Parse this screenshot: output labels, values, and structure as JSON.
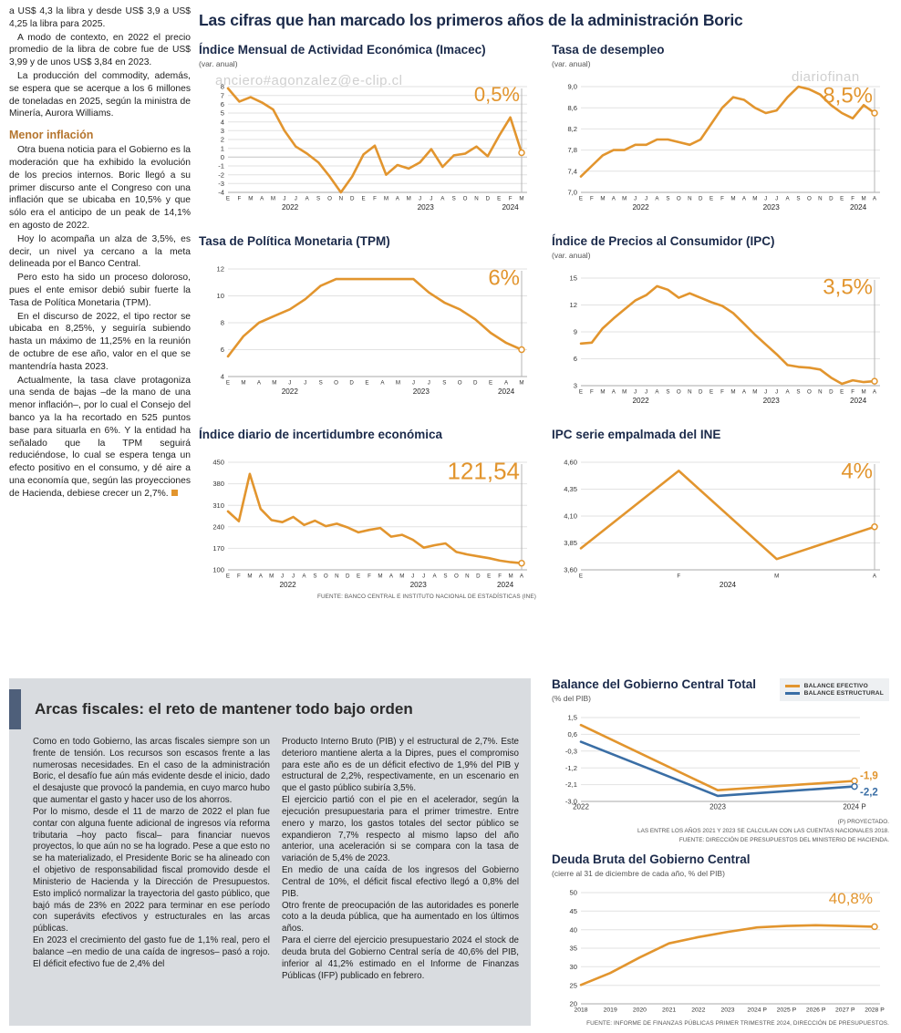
{
  "headline": "Las cifras que han marcado los primeros años de la administración Boric",
  "watermarks": {
    "w1": "anciero#agonzalez@e-clip.cl",
    "w2": "diariofinan",
    "w3": "ero#agonzalez@e-clip.cl"
  },
  "left_article": {
    "p1": "a US$ 4,3 la libra y desde US$ 3,9 a US$ 4,25 la libra para 2025.",
    "p2": "A modo de contexto, en 2022 el precio promedio de la libra de cobre fue de US$ 3,99 y de unos US$ 3,84 en 2023.",
    "p3": "La producción del commodity, además, se espera que se acerque a los 6 millones de toneladas en 2025, según la ministra de Minería, Aurora Williams.",
    "subhead": "Menor inflación",
    "p4": "Otra buena noticia para el Gobierno es la moderación que ha exhibido la evolución de los precios internos. Boric llegó a su primer discurso ante el Congreso con una inflación que se ubicaba en 10,5% y que sólo era el anticipo de un peak de 14,1% en agosto de 2022.",
    "p5": "Hoy lo acompaña un alza de 3,5%, es decir, un nivel ya cercano a la meta delineada por el Banco Central.",
    "p6": "Pero esto ha sido un proceso doloroso, pues el ente emisor debió subir fuerte la Tasa de Política Monetaria (TPM).",
    "p7": "En el discurso de 2022, el tipo rector se ubicaba en 8,25%, y seguiría subiendo hasta un máximo de 11,25% en la reunión de octubre de ese año, valor en el que se mantendría hasta 2023.",
    "p8": "Actualmente, la tasa clave protagoniza una senda de bajas –de la mano de una menor inflación–, por lo cual el Consejo del banco ya la ha recortado en 525 puntos base para situarla en 6%. Y la entidad ha señalado que la TPM seguirá reduciéndose, lo cual se espera tenga un efecto positivo en el consumo, y dé aire a una economía que, según las proyecciones de Hacienda, debiese crecer un 2,7%."
  },
  "fiscal": {
    "title": "Arcas fiscales: el reto de mantener todo bajo orden",
    "col1": [
      "Como en todo Gobierno, las arcas fiscales siempre son un frente de tensión. Los recursos son escasos frente a las numerosas necesidades. En el caso de la administración Boric, el desafío fue aún más evidente desde el inicio, dado el desajuste que provocó la pandemia, en cuyo marco hubo que aumentar el gasto y hacer uso de los ahorros.",
      "Por lo mismo, desde el 11 de marzo de 2022 el plan fue contar con alguna fuente adicional de ingresos vía reforma tributaria –hoy pacto fiscal– para financiar nuevos proyectos, lo que aún no se ha logrado. Pese a que esto no se ha materializado, el Presidente Boric se ha alineado con el objetivo de responsabilidad fiscal promovido desde el Ministerio de Hacienda y la Dirección de Presupuestos. Esto implicó normalizar la trayectoria del gasto público, que bajó más de 23% en 2022 para terminar en ese período con superávits efectivos y estructurales en las arcas públicas.",
      "En 2023 el crecimiento del gasto fue de 1,1% real, pero el balance –en medio de una caída de ingresos– pasó a rojo. El déficit efectivo fue de 2,4% del"
    ],
    "col2": [
      "Producto Interno Bruto (PIB) y el estructural de 2,7%. Este deterioro mantiene alerta a la Dipres, pues el compromiso para este año es de un déficit efectivo de 1,9% del PIB y estructural de 2,2%, respectivamente, en un escenario en que el gasto público subiría 3,5%.",
      "El ejercicio partió con el pie en el acelerador, según la ejecución presupuestaria para el primer trimestre. Entre enero y marzo, los gastos totales del sector público se expandieron 7,7% respecto al mismo lapso del año anterior, una aceleración si se compara con la tasa de variación de 5,4% de 2023.",
      "En medio de una caída de los ingresos del Gobierno Central de 10%, el déficit fiscal efectivo llegó a 0,8% del PIB.",
      "Otro frente de preocupación de las autoridades es ponerle coto a la deuda pública, que ha aumentado en los últimos años.",
      "Para el cierre del ejercicio presupuestario 2024 el stock de deuda bruta del Gobierno Central sería de 40,6% del PIB, inferior al 41,2% estimado en el Informe de Finanzas Públicas (IFP) publicado en febrero."
    ]
  },
  "colors": {
    "accent_orange": "#E2952E",
    "line_blue": "#3A6EA5",
    "navy": "#1B2A4A",
    "subhead_brown": "#B5752E",
    "box_gray": "#D9DCE0",
    "bar_slate": "#4E5F7A"
  },
  "chart_data": [
    {
      "id": "imacec",
      "type": "line",
      "title": "Índice Mensual de Actividad Económica (Imacec)",
      "subtitle": "(var. anual)",
      "big_label": "0,5%",
      "big_label_size": 22,
      "end_line": true,
      "ylim": [
        -4,
        8
      ],
      "y_ticks": [
        {
          "v": 8,
          "t": "8"
        },
        {
          "v": 7,
          "t": "7"
        },
        {
          "v": 6,
          "t": "6"
        },
        {
          "v": 5,
          "t": "5"
        },
        {
          "v": 4,
          "t": "4"
        },
        {
          "v": 3,
          "t": "3"
        },
        {
          "v": 2,
          "t": "2"
        },
        {
          "v": 1,
          "t": "1"
        },
        {
          "v": 0,
          "t": "0"
        },
        {
          "v": -1,
          "t": "-1"
        },
        {
          "v": -2,
          "t": "-2"
        },
        {
          "v": -3,
          "t": "-3"
        },
        {
          "v": -4,
          "t": "-4"
        }
      ],
      "x_labels": [
        "E",
        "F",
        "M",
        "A",
        "M",
        "J",
        "J",
        "A",
        "S",
        "O",
        "N",
        "D",
        "E",
        "F",
        "M",
        "A",
        "M",
        "J",
        "J",
        "A",
        "S",
        "O",
        "N",
        "D",
        "E",
        "F",
        "M"
      ],
      "year_groups": [
        {
          "label": "2022",
          "from": 0,
          "to": 11
        },
        {
          "label": "2023",
          "from": 12,
          "to": 23
        },
        {
          "label": "2024",
          "from": 24,
          "to": 26
        }
      ],
      "series": [
        {
          "name": "Imacec",
          "color": "#E2952E",
          "values": [
            7.8,
            6.3,
            6.8,
            6.2,
            5.4,
            3.0,
            1.2,
            0.4,
            -0.6,
            -2.2,
            -4.0,
            -2.2,
            0.3,
            1.3,
            -2.0,
            -0.9,
            -1.3,
            -0.6,
            0.9,
            -1.1,
            0.2,
            0.4,
            1.2,
            0.1,
            2.4,
            4.5,
            0.5
          ]
        }
      ]
    },
    {
      "id": "desempleo",
      "type": "line",
      "title": "Tasa de desempleo",
      "subtitle": "(var. anual)",
      "big_label": "8,5%",
      "big_label_size": 24,
      "end_line": true,
      "ylim": [
        7.0,
        9.0
      ],
      "y_ticks": [
        {
          "v": 9.0,
          "t": "9,0"
        },
        {
          "v": 8.6,
          "t": "8,6"
        },
        {
          "v": 8.2,
          "t": "8,2"
        },
        {
          "v": 7.8,
          "t": "7,8"
        },
        {
          "v": 7.4,
          "t": "7,4"
        },
        {
          "v": 7.0,
          "t": "7,0"
        }
      ],
      "x_labels": [
        "E",
        "F",
        "M",
        "A",
        "M",
        "J",
        "J",
        "A",
        "S",
        "O",
        "N",
        "D",
        "E",
        "F",
        "M",
        "A",
        "M",
        "J",
        "J",
        "A",
        "S",
        "O",
        "N",
        "D",
        "E",
        "F",
        "M",
        "A"
      ],
      "year_groups": [
        {
          "label": "2022",
          "from": 0,
          "to": 11
        },
        {
          "label": "2023",
          "from": 12,
          "to": 23
        },
        {
          "label": "2024",
          "from": 24,
          "to": 27
        }
      ],
      "series": [
        {
          "name": "Tasa de desempleo",
          "color": "#E2952E",
          "values": [
            7.3,
            7.5,
            7.7,
            7.8,
            7.8,
            7.9,
            7.9,
            8.0,
            8.0,
            7.95,
            7.9,
            8.0,
            8.3,
            8.6,
            8.8,
            8.75,
            8.6,
            8.5,
            8.55,
            8.8,
            9.0,
            8.95,
            8.85,
            8.65,
            8.5,
            8.4,
            8.65,
            8.5
          ]
        }
      ]
    },
    {
      "id": "tpm",
      "type": "line",
      "title": "Tasa de Política Monetaria (TPM)",
      "big_label": "6%",
      "big_label_size": 24,
      "end_line": true,
      "ylim": [
        4,
        12
      ],
      "y_ticks": [
        {
          "v": 12,
          "t": "12"
        },
        {
          "v": 10,
          "t": "10"
        },
        {
          "v": 8,
          "t": "8"
        },
        {
          "v": 6,
          "t": "6"
        },
        {
          "v": 4,
          "t": "4"
        }
      ],
      "x_labels": [
        "E",
        "M",
        "A",
        "M",
        "J",
        "J",
        "S",
        "O",
        "D",
        "E",
        "A",
        "M",
        "J",
        "J",
        "S",
        "O",
        "D",
        "E",
        "A",
        "M"
      ],
      "year_groups": [
        {
          "label": "2022",
          "from": 0,
          "to": 8
        },
        {
          "label": "2023",
          "from": 9,
          "to": 16
        },
        {
          "label": "2024",
          "from": 17,
          "to": 19
        }
      ],
      "series": [
        {
          "name": "TPM",
          "color": "#E2952E",
          "values": [
            5.5,
            7.0,
            8.0,
            8.5,
            9.0,
            9.75,
            10.75,
            11.25,
            11.25,
            11.25,
            11.25,
            11.25,
            11.25,
            10.25,
            9.5,
            9.0,
            8.25,
            7.25,
            6.5,
            6.0
          ]
        }
      ]
    },
    {
      "id": "ipc",
      "type": "line",
      "title": "Índice de Precios al Consumidor (IPC)",
      "subtitle": "(var. anual)",
      "big_label": "3,5%",
      "big_label_size": 24,
      "end_line": true,
      "ylim": [
        3,
        15
      ],
      "y_ticks": [
        {
          "v": 15,
          "t": "15"
        },
        {
          "v": 12,
          "t": "12"
        },
        {
          "v": 9,
          "t": "9"
        },
        {
          "v": 6,
          "t": "6"
        },
        {
          "v": 3,
          "t": "3"
        }
      ],
      "x_labels": [
        "E",
        "F",
        "M",
        "A",
        "M",
        "J",
        "J",
        "A",
        "S",
        "O",
        "N",
        "D",
        "E",
        "F",
        "M",
        "A",
        "M",
        "J",
        "J",
        "A",
        "S",
        "O",
        "N",
        "D",
        "E",
        "F",
        "M",
        "A"
      ],
      "year_groups": [
        {
          "label": "2022",
          "from": 0,
          "to": 11
        },
        {
          "label": "2023",
          "from": 12,
          "to": 23
        },
        {
          "label": "2024",
          "from": 24,
          "to": 27
        }
      ],
      "series": [
        {
          "name": "IPC",
          "color": "#E2952E",
          "values": [
            7.7,
            7.8,
            9.4,
            10.5,
            11.5,
            12.5,
            13.1,
            14.1,
            13.7,
            12.8,
            13.3,
            12.8,
            12.3,
            11.9,
            11.1,
            9.9,
            8.7,
            7.6,
            6.5,
            5.3,
            5.1,
            5.0,
            4.8,
            3.9,
            3.2,
            3.6,
            3.4,
            3.5
          ]
        }
      ]
    },
    {
      "id": "incertidumbre",
      "type": "line",
      "title": "Índice diario de incertidumbre económica",
      "big_label": "121,54",
      "big_label_size": 26,
      "end_line": true,
      "ylim": [
        100,
        450
      ],
      "y_ticks": [
        {
          "v": 450,
          "t": "450"
        },
        {
          "v": 380,
          "t": "380"
        },
        {
          "v": 310,
          "t": "310"
        },
        {
          "v": 240,
          "t": "240"
        },
        {
          "v": 170,
          "t": "170"
        },
        {
          "v": 100,
          "t": "100"
        }
      ],
      "x_labels": [
        "E",
        "F",
        "M",
        "A",
        "M",
        "J",
        "J",
        "A",
        "S",
        "O",
        "N",
        "D",
        "E",
        "F",
        "M",
        "A",
        "M",
        "J",
        "J",
        "A",
        "S",
        "O",
        "N",
        "D",
        "E",
        "F",
        "M",
        "A"
      ],
      "year_groups": [
        {
          "label": "2022",
          "from": 0,
          "to": 11
        },
        {
          "label": "2023",
          "from": 12,
          "to": 23
        },
        {
          "label": "2024",
          "from": 24,
          "to": 27
        }
      ],
      "series": [
        {
          "name": "Incertidumbre económica",
          "color": "#E2952E",
          "values": [
            290,
            258,
            412,
            298,
            262,
            255,
            272,
            246,
            260,
            242,
            250,
            238,
            222,
            230,
            236,
            208,
            214,
            198,
            172,
            180,
            186,
            158,
            150,
            144,
            138,
            130,
            125,
            121.54
          ]
        }
      ],
      "source": "FUENTE: BANCO CENTRAL E INSTITUTO NACIONAL DE ESTADÍSTICAS (INE)"
    },
    {
      "id": "ipc_empalmada",
      "type": "line",
      "title": "IPC serie empalmada del INE",
      "big_label": "4%",
      "big_label_size": 24,
      "end_line": true,
      "ylim": [
        3.6,
        4.6
      ],
      "y_ticks": [
        {
          "v": 4.6,
          "t": "4,60"
        },
        {
          "v": 4.35,
          "t": "4,35"
        },
        {
          "v": 4.1,
          "t": "4,10"
        },
        {
          "v": 3.85,
          "t": "3,85"
        },
        {
          "v": 3.6,
          "t": "3,60"
        }
      ],
      "x_labels": [
        "E",
        "F",
        "M",
        "A"
      ],
      "year_groups": [
        {
          "label": "2024",
          "from": 0,
          "to": 3
        }
      ],
      "series": [
        {
          "name": "IPC empalmado",
          "color": "#E2952E",
          "values": [
            3.8,
            4.52,
            3.7,
            4.0
          ]
        }
      ]
    },
    {
      "id": "balance",
      "type": "line",
      "title": "Balance del Gobierno Central Total",
      "subtitle": "(% del PIB)",
      "ylim": [
        -3.0,
        1.5
      ],
      "y_ticks": [
        {
          "v": 1.5,
          "t": "1,5"
        },
        {
          "v": 0.6,
          "t": "0,6"
        },
        {
          "v": -0.3,
          "t": "-0,3"
        },
        {
          "v": -1.2,
          "t": "-1,2"
        },
        {
          "v": -2.1,
          "t": "-2,1"
        },
        {
          "v": -3.0,
          "t": "-3,0"
        }
      ],
      "x_labels": [
        "2022",
        "2023",
        "2024 P"
      ],
      "series": [
        {
          "name": "BALANCE EFECTIVO",
          "color": "#E2952E",
          "values": [
            1.1,
            -2.4,
            -1.9
          ]
        },
        {
          "name": "BALANCE ESTRUCTURAL",
          "color": "#3A6EA5",
          "values": [
            0.2,
            -2.7,
            -2.2
          ]
        }
      ],
      "end_labels": [
        {
          "t": "-1,9",
          "color": "#E2952E"
        },
        {
          "t": "-2,2",
          "color": "#3A6EA5"
        }
      ],
      "legend_position": "top-right",
      "notes": [
        "(P) PROYECTADO.",
        "LAS ENTRE LOS AÑOS 2021 Y 2023 SE CALCULAN CON LAS CUENTAS NACIONALES 2018.",
        "FUENTE: DIRECCIÓN DE PRESUPUESTOS DEL MINISTERIO DE HACIENDA."
      ]
    },
    {
      "id": "deuda",
      "type": "line",
      "title": "Deuda Bruta del Gobierno Central",
      "subtitle": "(cierre al 31 de diciembre de cada año, % del PIB)",
      "big_label": "40,8%",
      "big_label_size": 17,
      "ylim": [
        20,
        50
      ],
      "y_ticks": [
        {
          "v": 50,
          "t": "50"
        },
        {
          "v": 45,
          "t": "45"
        },
        {
          "v": 40,
          "t": "40"
        },
        {
          "v": 35,
          "t": "35"
        },
        {
          "v": 30,
          "t": "30"
        },
        {
          "v": 25,
          "t": "25"
        },
        {
          "v": 20,
          "t": "20"
        }
      ],
      "x_labels": [
        "2018",
        "2019",
        "2020",
        "2021",
        "2022",
        "2023",
        "2024 P",
        "2025 P",
        "2026 P",
        "2027 P",
        "2028 P"
      ],
      "series": [
        {
          "name": "Deuda bruta",
          "color": "#E2952E",
          "values": [
            25.1,
            28.3,
            32.5,
            36.3,
            38.0,
            39.4,
            40.6,
            41.0,
            41.2,
            41.0,
            40.8
          ]
        }
      ],
      "source": "FUENTE: INFORME DE FINANZAS PÚBLICAS PRIMER TRIMESTRE 2024, DIRECCIÓN DE PRESUPUESTOS."
    }
  ]
}
